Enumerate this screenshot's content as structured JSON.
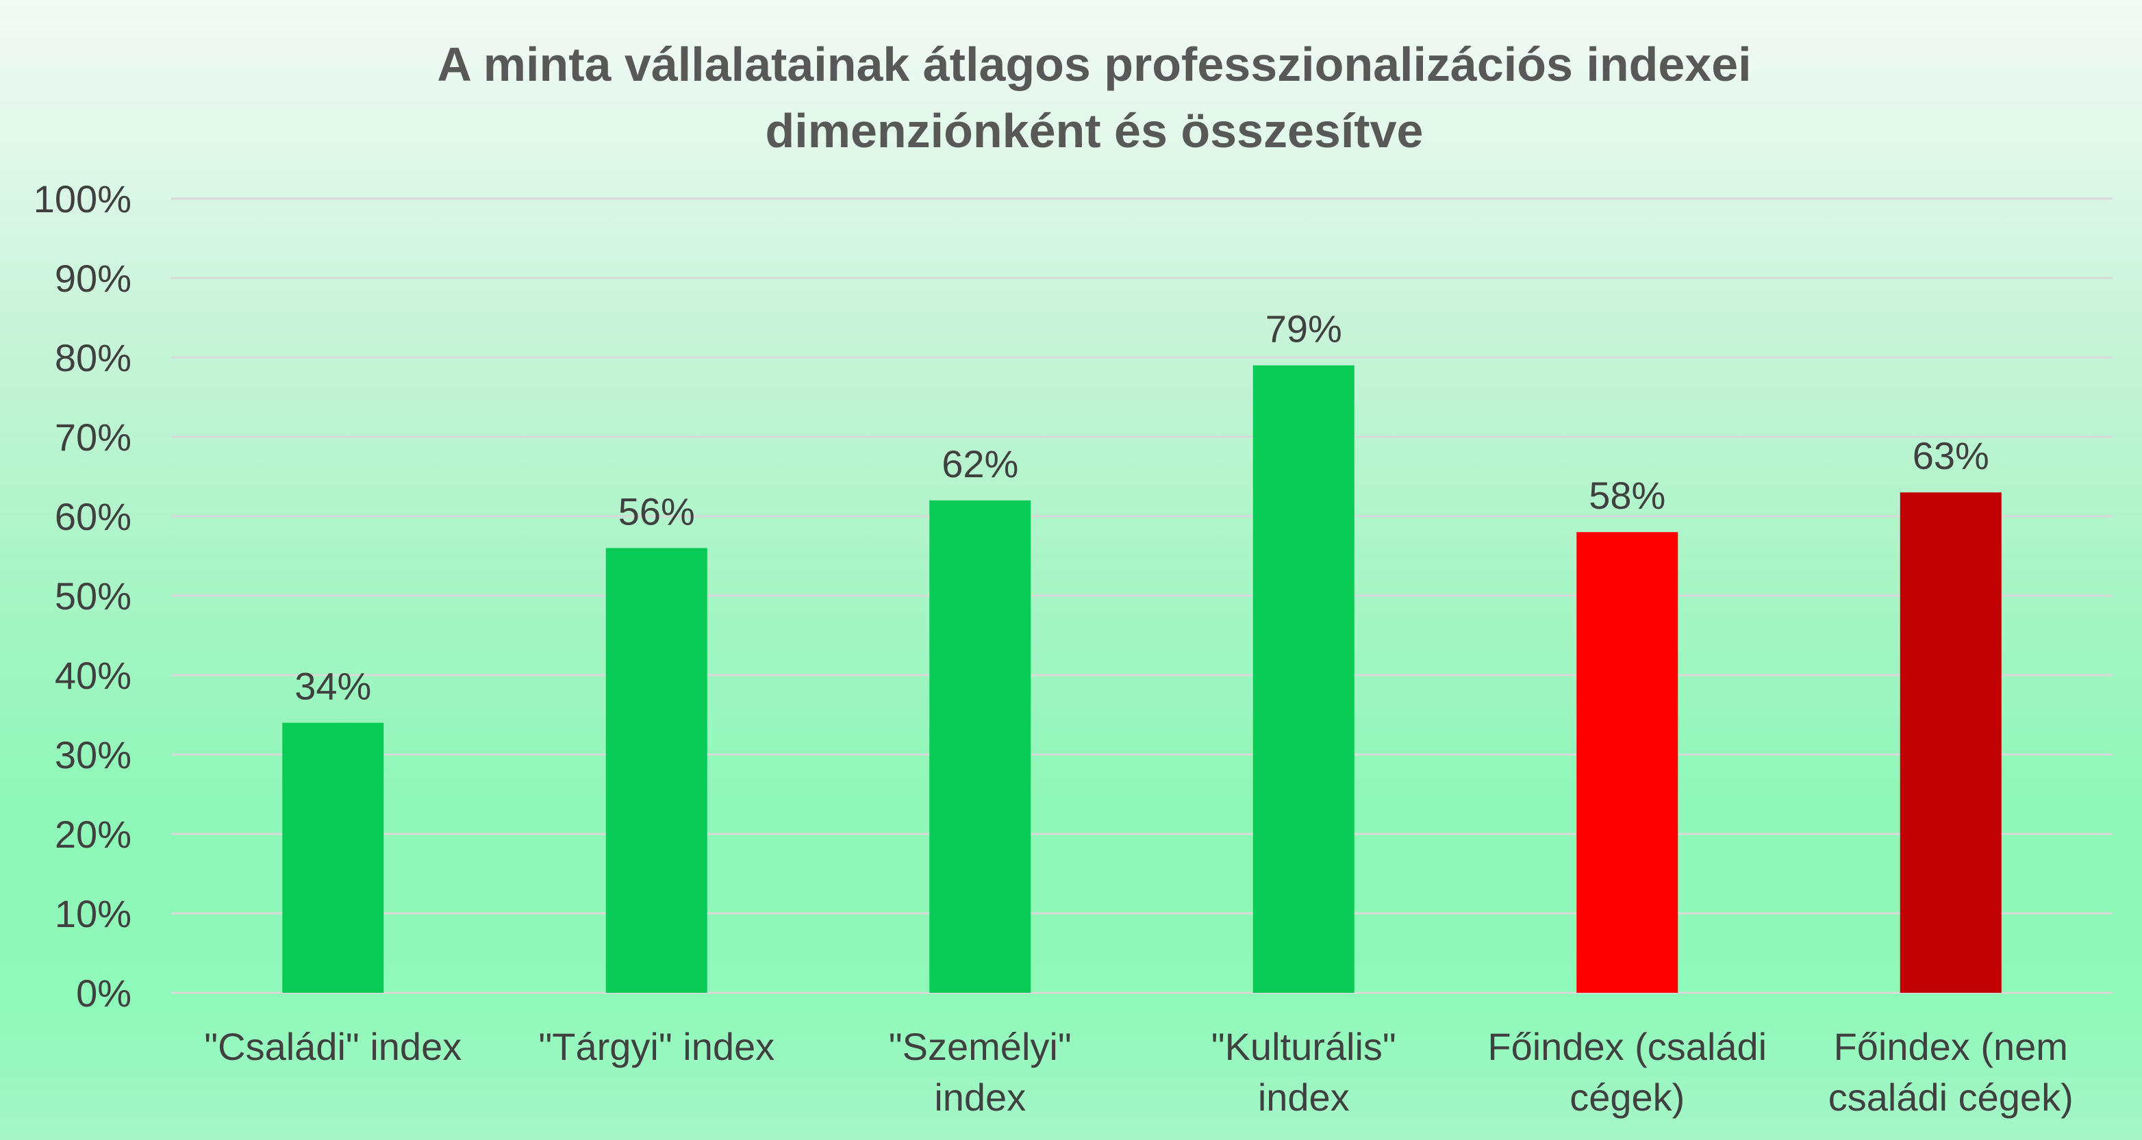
{
  "chart_data": {
    "type": "bar",
    "title_lines": [
      "A minta vállalatainak átlagos professzionalizációs indexei",
      "dimenziónként és összesítve"
    ],
    "categories": [
      [
        "\"Családi\" index"
      ],
      [
        "\"Tárgyi\" index"
      ],
      [
        "\"Személyi\"",
        "index"
      ],
      [
        "\"Kulturális\"",
        "index"
      ],
      [
        "Főindex (családi",
        "cégek)"
      ],
      [
        "Főindex (nem",
        "családi cégek)"
      ]
    ],
    "values": [
      34,
      56,
      62,
      79,
      58,
      63
    ],
    "data_labels": [
      "34%",
      "56%",
      "62%",
      "79%",
      "58%",
      "63%"
    ],
    "bar_colors": [
      "#0acb56",
      "#0acb56",
      "#0acb56",
      "#0acb56",
      "#ff0000",
      "#c00000"
    ],
    "ylim": [
      0,
      100
    ],
    "y_ticks": [
      "0%",
      "10%",
      "20%",
      "30%",
      "40%",
      "50%",
      "60%",
      "70%",
      "80%",
      "90%",
      "100%"
    ],
    "xlabel": "",
    "ylabel": "",
    "grid": true,
    "legend": "none"
  }
}
